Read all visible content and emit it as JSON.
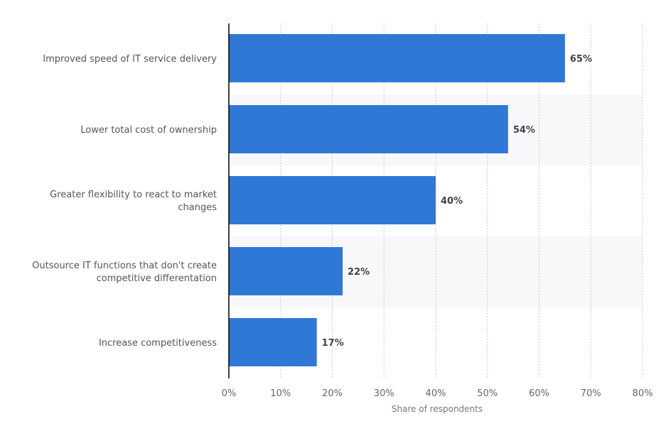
{
  "chart_data": {
    "type": "bar",
    "orientation": "horizontal",
    "categories": [
      [
        "Improved speed of IT service delivery"
      ],
      [
        "Lower total cost of ownership"
      ],
      [
        "Greater flexibility to react to market",
        "changes"
      ],
      [
        "Outsource IT functions that don't create",
        "competitive differentation"
      ],
      [
        "Increase competitiveness"
      ]
    ],
    "values": [
      65,
      54,
      40,
      22,
      17
    ],
    "data_labels": [
      "65%",
      "54%",
      "40%",
      "22%",
      "17%"
    ],
    "xlabel": "Share of respondents",
    "xlim": [
      0,
      80
    ],
    "x_ticks": [
      0,
      10,
      20,
      30,
      40,
      50,
      60,
      70,
      80
    ],
    "x_tick_labels": [
      "0%",
      "10%",
      "20%",
      "30%",
      "40%",
      "50%",
      "60%",
      "70%",
      "80%"
    ],
    "grid": "vertical dotted",
    "colors": {
      "bar": "#2f78d6",
      "band": "#f8f8fa",
      "grid": "#cccccc",
      "axis": "#000000"
    }
  }
}
